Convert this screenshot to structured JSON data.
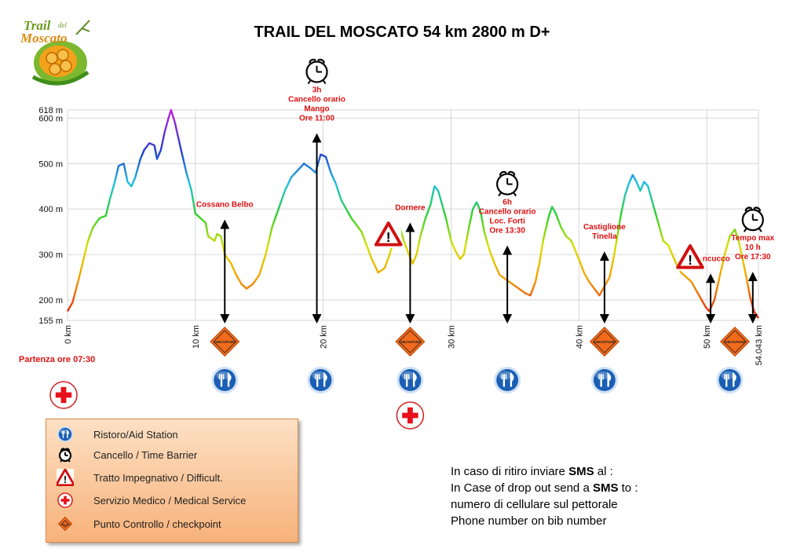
{
  "title": "TRAIL DEL MOSCATO 54 km 2800 m D+",
  "logo": {
    "line1": "Trail",
    "line2": "del",
    "line3": "Moscato"
  },
  "start_label": "Partenza ore 07:30",
  "colors": {
    "label_red": "#e01010",
    "arrow": "#000000",
    "aid_blue": "#1a5fb4",
    "checkpoint_orange": "#f26a1b",
    "medical_red": "#e8101a",
    "legend_bg": "#f9c08e"
  },
  "chart_data": {
    "type": "line",
    "title": "TRAIL DEL MOSCATO 54 km 2800 m D+",
    "xlabel": "",
    "ylabel": "",
    "xlim": [
      0,
      54.043
    ],
    "ylim": [
      155,
      618
    ],
    "x_ticks": [
      {
        "value": 0,
        "label": "0 km"
      },
      {
        "value": 10,
        "label": "10 km"
      },
      {
        "value": 20,
        "label": "20 km"
      },
      {
        "value": 30,
        "label": "30 km"
      },
      {
        "value": 40,
        "label": "40 km"
      },
      {
        "value": 50,
        "label": "50 km"
      },
      {
        "value": 54.043,
        "label": "54.043 km"
      }
    ],
    "y_ticks": [
      {
        "value": 155,
        "label": "155 m"
      },
      {
        "value": 200,
        "label": "200 m"
      },
      {
        "value": 300,
        "label": "300 m"
      },
      {
        "value": 400,
        "label": "400 m"
      },
      {
        "value": 500,
        "label": "500 m"
      },
      {
        "value": 600,
        "label": "600 m"
      },
      {
        "value": 618,
        "label": "618 m"
      }
    ],
    "grid": true,
    "series": [
      {
        "profile": [
          [
            0,
            175
          ],
          [
            0.4,
            195
          ],
          [
            1,
            260
          ],
          [
            1.6,
            330
          ],
          [
            2,
            360
          ],
          [
            2.5,
            380
          ],
          [
            3,
            385
          ],
          [
            3.3,
            420
          ],
          [
            3.7,
            460
          ],
          [
            4,
            495
          ],
          [
            4.4,
            500
          ],
          [
            4.7,
            460
          ],
          [
            5,
            450
          ],
          [
            5.3,
            470
          ],
          [
            5.7,
            510
          ],
          [
            6,
            530
          ],
          [
            6.4,
            545
          ],
          [
            6.8,
            540
          ],
          [
            7,
            510
          ],
          [
            7.3,
            530
          ],
          [
            7.6,
            570
          ],
          [
            7.9,
            600
          ],
          [
            8.1,
            618
          ],
          [
            8.4,
            590
          ],
          [
            8.8,
            540
          ],
          [
            9.3,
            480
          ],
          [
            9.7,
            440
          ],
          [
            10,
            390
          ],
          [
            10.4,
            380
          ],
          [
            10.8,
            370
          ],
          [
            11,
            340
          ],
          [
            11.5,
            330
          ],
          [
            11.7,
            345
          ],
          [
            12,
            340
          ],
          [
            12.3,
            300
          ],
          [
            12.8,
            280
          ],
          [
            13.2,
            255
          ],
          [
            13.6,
            235
          ],
          [
            14,
            225
          ],
          [
            14.5,
            235
          ],
          [
            15,
            255
          ],
          [
            15.5,
            300
          ],
          [
            16,
            360
          ],
          [
            16.5,
            400
          ],
          [
            17,
            440
          ],
          [
            17.5,
            470
          ],
          [
            18,
            485
          ],
          [
            18.5,
            500
          ],
          [
            19,
            490
          ],
          [
            19.4,
            480
          ],
          [
            19.8,
            520
          ],
          [
            20.2,
            515
          ],
          [
            20.6,
            480
          ],
          [
            21,
            455
          ],
          [
            21.4,
            420
          ],
          [
            21.8,
            400
          ],
          [
            22.2,
            380
          ],
          [
            22.6,
            365
          ],
          [
            23,
            350
          ],
          [
            23.4,
            320
          ],
          [
            23.8,
            290
          ],
          [
            24.3,
            260
          ],
          [
            24.8,
            270
          ],
          [
            25.2,
            300
          ],
          [
            25.6,
            340
          ],
          [
            26,
            360
          ],
          [
            26.3,
            330
          ],
          [
            26.7,
            300
          ],
          [
            27,
            280
          ],
          [
            27.3,
            300
          ],
          [
            27.6,
            340
          ],
          [
            28,
            380
          ],
          [
            28.4,
            410
          ],
          [
            28.7,
            450
          ],
          [
            29,
            440
          ],
          [
            29.3,
            410
          ],
          [
            29.6,
            380
          ],
          [
            30,
            330
          ],
          [
            30.3,
            310
          ],
          [
            30.7,
            290
          ],
          [
            31,
            300
          ],
          [
            31.4,
            360
          ],
          [
            31.7,
            400
          ],
          [
            32,
            415
          ],
          [
            32.3,
            395
          ],
          [
            32.6,
            350
          ],
          [
            33,
            310
          ],
          [
            33.4,
            280
          ],
          [
            33.8,
            255
          ],
          [
            34.3,
            245
          ],
          [
            34.8,
            235
          ],
          [
            35.3,
            225
          ],
          [
            35.8,
            215
          ],
          [
            36.2,
            210
          ],
          [
            36.6,
            240
          ],
          [
            36.9,
            280
          ],
          [
            37.2,
            330
          ],
          [
            37.6,
            380
          ],
          [
            37.9,
            405
          ],
          [
            38.2,
            390
          ],
          [
            38.6,
            360
          ],
          [
            39,
            340
          ],
          [
            39.4,
            330
          ],
          [
            39.7,
            310
          ],
          [
            40,
            290
          ],
          [
            40.4,
            260
          ],
          [
            40.8,
            240
          ],
          [
            41.2,
            225
          ],
          [
            41.6,
            210
          ],
          [
            42,
            230
          ],
          [
            42.4,
            250
          ],
          [
            42.7,
            290
          ],
          [
            43,
            340
          ],
          [
            43.3,
            390
          ],
          [
            43.6,
            430
          ],
          [
            43.9,
            455
          ],
          [
            44.2,
            475
          ],
          [
            44.5,
            460
          ],
          [
            44.8,
            440
          ],
          [
            45.1,
            460
          ],
          [
            45.4,
            450
          ],
          [
            45.8,
            410
          ],
          [
            46.2,
            370
          ],
          [
            46.6,
            330
          ],
          [
            47,
            320
          ],
          [
            47.3,
            300
          ],
          [
            47.6,
            280
          ],
          [
            48,
            260
          ],
          [
            48.4,
            250
          ],
          [
            48.8,
            240
          ],
          [
            49.2,
            220
          ],
          [
            49.6,
            200
          ],
          [
            49.9,
            185
          ],
          [
            50.2,
            175
          ],
          [
            50.6,
            200
          ],
          [
            51,
            250
          ],
          [
            51.4,
            300
          ],
          [
            51.8,
            340
          ],
          [
            52.2,
            355
          ],
          [
            52.5,
            330
          ],
          [
            52.8,
            290
          ],
          [
            53.1,
            250
          ],
          [
            53.4,
            205
          ],
          [
            53.7,
            175
          ],
          [
            54.043,
            160
          ]
        ]
      }
    ],
    "annotations": [
      {
        "km": 12.3,
        "text": [
          "Cossano Belbo"
        ]
      },
      {
        "km": 19.5,
        "text": [
          "3h",
          "Cancello orario",
          "Mango",
          "Ore 11:00"
        ]
      },
      {
        "km": 26.8,
        "text": [
          "Dornere"
        ]
      },
      {
        "km": 34.4,
        "text": [
          "6h",
          "Cancello orario",
          "Loc. Forti",
          "Ore 13:30"
        ]
      },
      {
        "km": 42.0,
        "text": [
          "Castiglione",
          "Tinella"
        ]
      },
      {
        "km": 50.3,
        "text": [
          "Moncucco"
        ]
      },
      {
        "km": 53.6,
        "text": [
          "Tempo max",
          "10 h",
          "Ore 17:30"
        ]
      }
    ],
    "checkpoints_km": [
      12.3,
      26.8,
      42.0,
      52.2
    ],
    "aid_stations_km": [
      12.3,
      19.8,
      26.8,
      34.4,
      42.0,
      51.8
    ],
    "medical_km": [
      0.3,
      26.8
    ],
    "time_barriers_km": [
      19.8,
      34.4,
      53.6
    ],
    "difficult_km": [
      25.1,
      48.7
    ]
  },
  "legend": {
    "items": [
      {
        "label": "Ristoro/Aid Station",
        "icon": "aid-station-icon"
      },
      {
        "label": "Cancello / Time Barrier",
        "icon": "alarm-clock-icon"
      },
      {
        "label": "Tratto Impegnativo / Difficult.",
        "icon": "warning-triangle-icon"
      },
      {
        "label": "Servizio Medico / Medical Service",
        "icon": "medical-cross-icon"
      },
      {
        "label": "Punto Controllo / checkpoint",
        "icon": "checkpoint-diamond-icon"
      }
    ]
  },
  "checkpoint_icon_text": "CHECKPOINT",
  "sms": {
    "line1_pre": "In caso di ritiro inviare ",
    "line1_bold": "SMS",
    "line1_post": " al :",
    "line2_pre": "In Case of drop out send a ",
    "line2_bold": "SMS",
    "line2_post": " to :",
    "line3": "numero di cellulare sul pettorale",
    "line4": "Phone number on  bib number"
  }
}
